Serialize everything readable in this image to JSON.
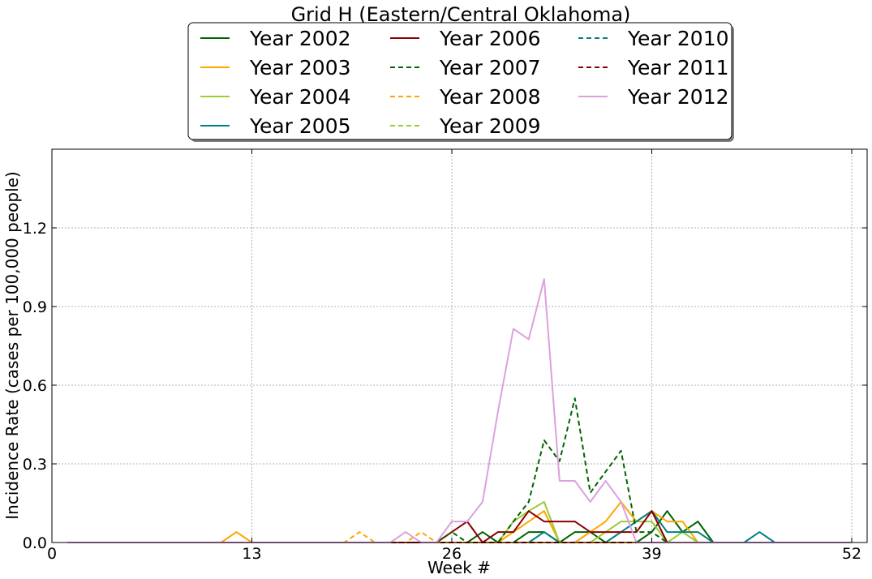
{
  "chart_data": {
    "type": "line",
    "title": "Grid H (Eastern/Central Oklahoma)",
    "xlabel": "Week #",
    "ylabel": "Incidence Rate (cases per 100,000 people)",
    "xlim": [
      0,
      53
    ],
    "ylim": [
      0,
      1.5
    ],
    "xticks": [
      0,
      13,
      26,
      39,
      52
    ],
    "yticks": [
      0.0,
      0.3,
      0.6,
      0.9,
      1.2
    ],
    "ytick_labels": [
      "0.0",
      "0.3",
      "0.6",
      "0.9",
      "1.2"
    ],
    "grid": true,
    "legend": {
      "placement": "top-center",
      "columns": 3
    },
    "series": [
      {
        "name": "Year 2002",
        "color": "#006400",
        "dash": "solid",
        "x": [
          1,
          2,
          3,
          4,
          5,
          6,
          7,
          8,
          9,
          10,
          11,
          12,
          13,
          14,
          15,
          16,
          17,
          18,
          19,
          20,
          21,
          22,
          23,
          24,
          25,
          26,
          27,
          28,
          29,
          30,
          31,
          32,
          33,
          34,
          35,
          36,
          37,
          38,
          39,
          40,
          41,
          42,
          43,
          44,
          45,
          46,
          47,
          48,
          49,
          50,
          51,
          52
        ],
        "y": [
          0,
          0,
          0,
          0,
          0,
          0,
          0,
          0,
          0,
          0,
          0,
          0,
          0,
          0,
          0,
          0,
          0,
          0,
          0,
          0,
          0,
          0,
          0,
          0,
          0,
          0,
          0,
          0.04,
          0,
          0,
          0.04,
          0.04,
          0,
          0.04,
          0.04,
          0,
          0,
          0,
          0.04,
          0.12,
          0.04,
          0.08,
          0,
          0,
          0,
          0,
          0,
          0,
          0,
          0,
          0,
          0
        ]
      },
      {
        "name": "Year 2003",
        "color": "#ffa500",
        "dash": "solid",
        "x": [
          1,
          2,
          3,
          4,
          5,
          6,
          7,
          8,
          9,
          10,
          11,
          12,
          13,
          14,
          15,
          16,
          17,
          18,
          19,
          20,
          21,
          22,
          23,
          24,
          25,
          26,
          27,
          28,
          29,
          30,
          31,
          32,
          33,
          34,
          35,
          36,
          37,
          38,
          39,
          40,
          41,
          42,
          43,
          44,
          45,
          46,
          47,
          48,
          49,
          50,
          51,
          52
        ],
        "y": [
          0,
          0,
          0,
          0,
          0,
          0,
          0,
          0,
          0,
          0,
          0,
          0.04,
          0,
          0,
          0,
          0,
          0,
          0,
          0,
          0,
          0,
          0,
          0,
          0,
          0,
          0,
          0,
          0,
          0,
          0.04,
          0.08,
          0.12,
          0,
          0,
          0.04,
          0.08,
          0.155,
          0.08,
          0.12,
          0.08,
          0.08,
          0,
          0,
          0,
          0,
          0,
          0,
          0,
          0,
          0,
          0,
          0
        ]
      },
      {
        "name": "Year 2004",
        "color": "#9acd32",
        "dash": "solid",
        "x": [
          1,
          2,
          3,
          4,
          5,
          6,
          7,
          8,
          9,
          10,
          11,
          12,
          13,
          14,
          15,
          16,
          17,
          18,
          19,
          20,
          21,
          22,
          23,
          24,
          25,
          26,
          27,
          28,
          29,
          30,
          31,
          32,
          33,
          34,
          35,
          36,
          37,
          38,
          39,
          40,
          41,
          42,
          43,
          44,
          45,
          46,
          47,
          48,
          49,
          50,
          51,
          52
        ],
        "y": [
          0,
          0,
          0,
          0,
          0,
          0,
          0,
          0,
          0,
          0,
          0,
          0,
          0,
          0,
          0,
          0,
          0,
          0,
          0,
          0,
          0,
          0,
          0,
          0,
          0,
          0,
          0,
          0,
          0,
          0.08,
          0.12,
          0.155,
          0,
          0,
          0,
          0.04,
          0.08,
          0.08,
          0.08,
          0,
          0.04,
          0,
          0,
          0,
          0,
          0,
          0,
          0,
          0,
          0,
          0,
          0
        ]
      },
      {
        "name": "Year 2005",
        "color": "#008080",
        "dash": "solid",
        "x": [
          1,
          2,
          3,
          4,
          5,
          6,
          7,
          8,
          9,
          10,
          11,
          12,
          13,
          14,
          15,
          16,
          17,
          18,
          19,
          20,
          21,
          22,
          23,
          24,
          25,
          26,
          27,
          28,
          29,
          30,
          31,
          32,
          33,
          34,
          35,
          36,
          37,
          38,
          39,
          40,
          41,
          42,
          43,
          44,
          45,
          46,
          47,
          48,
          49,
          50,
          51,
          52
        ],
        "y": [
          0,
          0,
          0,
          0,
          0,
          0,
          0,
          0,
          0,
          0,
          0,
          0,
          0,
          0,
          0,
          0,
          0,
          0,
          0,
          0,
          0,
          0,
          0,
          0,
          0,
          0,
          0,
          0,
          0,
          0,
          0,
          0.04,
          0,
          0,
          0,
          0,
          0.04,
          0.08,
          0.12,
          0.04,
          0.04,
          0.04,
          0,
          0,
          0,
          0.04,
          0,
          0,
          0,
          0,
          0,
          0
        ]
      },
      {
        "name": "Year 2006",
        "color": "#8b0000",
        "dash": "solid",
        "x": [
          1,
          2,
          3,
          4,
          5,
          6,
          7,
          8,
          9,
          10,
          11,
          12,
          13,
          14,
          15,
          16,
          17,
          18,
          19,
          20,
          21,
          22,
          23,
          24,
          25,
          26,
          27,
          28,
          29,
          30,
          31,
          32,
          33,
          34,
          35,
          36,
          37,
          38,
          39,
          40,
          41,
          42,
          43,
          44,
          45,
          46,
          47,
          48,
          49,
          50,
          51,
          52
        ],
        "y": [
          0,
          0,
          0,
          0,
          0,
          0,
          0,
          0,
          0,
          0,
          0,
          0,
          0,
          0,
          0,
          0,
          0,
          0,
          0,
          0,
          0,
          0,
          0,
          0,
          0,
          0.04,
          0.08,
          0,
          0.04,
          0.04,
          0.12,
          0.08,
          0.08,
          0.08,
          0.04,
          0.04,
          0.04,
          0.04,
          0.12,
          0,
          0,
          0,
          0,
          0,
          0,
          0,
          0,
          0,
          0,
          0,
          0,
          0
        ]
      },
      {
        "name": "Year 2007",
        "color": "#006400",
        "dash": "dashed",
        "x": [
          1,
          2,
          3,
          4,
          5,
          6,
          7,
          8,
          9,
          10,
          11,
          12,
          13,
          14,
          15,
          16,
          17,
          18,
          19,
          20,
          21,
          22,
          23,
          24,
          25,
          26,
          27,
          28,
          29,
          30,
          31,
          32,
          33,
          34,
          35,
          36,
          37,
          38,
          39,
          40,
          41,
          42,
          43,
          44,
          45,
          46,
          47,
          48,
          49,
          50,
          51,
          52
        ],
        "y": [
          0,
          0,
          0,
          0,
          0,
          0,
          0,
          0,
          0,
          0,
          0,
          0,
          0,
          0,
          0,
          0,
          0,
          0,
          0,
          0,
          0,
          0,
          0,
          0,
          0,
          0.04,
          0,
          0,
          0,
          0.08,
          0.155,
          0.39,
          0.31,
          0.55,
          0.19,
          0.27,
          0.35,
          0.04,
          0.04,
          0,
          0,
          0,
          0,
          0,
          0,
          0,
          0,
          0,
          0,
          0,
          0,
          0
        ]
      },
      {
        "name": "Year 2008",
        "color": "#ffa500",
        "dash": "dashed",
        "x": [
          1,
          2,
          3,
          4,
          5,
          6,
          7,
          8,
          9,
          10,
          11,
          12,
          13,
          14,
          15,
          16,
          17,
          18,
          19,
          20,
          21,
          22,
          23,
          24,
          25,
          26,
          27,
          28,
          29,
          30,
          31,
          32,
          33,
          34,
          35,
          36,
          37,
          38,
          39,
          40,
          41,
          42,
          43,
          44,
          45,
          46,
          47,
          48,
          49,
          50,
          51,
          52
        ],
        "y": [
          0,
          0,
          0,
          0,
          0,
          0,
          0,
          0,
          0,
          0,
          0,
          0,
          0,
          0,
          0,
          0,
          0,
          0,
          0,
          0.04,
          0,
          0,
          0,
          0.04,
          0,
          0,
          0,
          0,
          0,
          0,
          0,
          0,
          0,
          0,
          0,
          0,
          0,
          0,
          0,
          0,
          0,
          0,
          0,
          0,
          0,
          0,
          0,
          0,
          0,
          0,
          0,
          0
        ]
      },
      {
        "name": "Year 2009",
        "color": "#9acd32",
        "dash": "dashed",
        "x": [
          1,
          2,
          3,
          4,
          5,
          6,
          7,
          8,
          9,
          10,
          11,
          12,
          13,
          14,
          15,
          16,
          17,
          18,
          19,
          20,
          21,
          22,
          23,
          24,
          25,
          26,
          27,
          28,
          29,
          30,
          31,
          32,
          33,
          34,
          35,
          36,
          37,
          38,
          39,
          40,
          41,
          42,
          43,
          44,
          45,
          46,
          47,
          48,
          49,
          50,
          51,
          52
        ],
        "y": [
          0,
          0,
          0,
          0,
          0,
          0,
          0,
          0,
          0,
          0,
          0,
          0,
          0,
          0,
          0,
          0,
          0,
          0,
          0,
          0,
          0,
          0,
          0,
          0,
          0,
          0,
          0,
          0,
          0,
          0,
          0,
          0,
          0,
          0,
          0,
          0,
          0,
          0,
          0,
          0,
          0,
          0,
          0,
          0,
          0,
          0,
          0,
          0,
          0,
          0,
          0,
          0
        ]
      },
      {
        "name": "Year 2010",
        "color": "#008080",
        "dash": "dashed",
        "x": [
          1,
          2,
          3,
          4,
          5,
          6,
          7,
          8,
          9,
          10,
          11,
          12,
          13,
          14,
          15,
          16,
          17,
          18,
          19,
          20,
          21,
          22,
          23,
          24,
          25,
          26,
          27,
          28,
          29,
          30,
          31,
          32,
          33,
          34,
          35,
          36,
          37,
          38,
          39,
          40,
          41,
          42,
          43,
          44,
          45,
          46,
          47,
          48,
          49,
          50,
          51,
          52
        ],
        "y": [
          0,
          0,
          0,
          0,
          0,
          0,
          0,
          0,
          0,
          0,
          0,
          0,
          0,
          0,
          0,
          0,
          0,
          0,
          0,
          0,
          0,
          0,
          0,
          0,
          0,
          0,
          0,
          0,
          0,
          0,
          0,
          0,
          0,
          0,
          0,
          0,
          0,
          0,
          0,
          0,
          0,
          0,
          0,
          0,
          0,
          0,
          0,
          0,
          0,
          0,
          0,
          0
        ]
      },
      {
        "name": "Year 2011",
        "color": "#8b0000",
        "dash": "dashed",
        "x": [
          1,
          2,
          3,
          4,
          5,
          6,
          7,
          8,
          9,
          10,
          11,
          12,
          13,
          14,
          15,
          16,
          17,
          18,
          19,
          20,
          21,
          22,
          23,
          24,
          25,
          26,
          27,
          28,
          29,
          30,
          31,
          32,
          33,
          34,
          35,
          36,
          37,
          38,
          39,
          40,
          41,
          42,
          43,
          44,
          45,
          46,
          47,
          48,
          49,
          50,
          51,
          52
        ],
        "y": [
          0,
          0,
          0,
          0,
          0,
          0,
          0,
          0,
          0,
          0,
          0,
          0,
          0,
          0,
          0,
          0,
          0,
          0,
          0,
          0,
          0,
          0,
          0,
          0,
          0,
          0,
          0,
          0,
          0,
          0,
          0,
          0,
          0,
          0,
          0,
          0,
          0,
          0,
          0,
          0,
          0,
          0,
          0,
          0,
          0,
          0,
          0,
          0,
          0,
          0,
          0,
          0
        ]
      },
      {
        "name": "Year 2012",
        "color": "#dda0dd",
        "dash": "solid",
        "x": [
          1,
          2,
          3,
          4,
          5,
          6,
          7,
          8,
          9,
          10,
          11,
          12,
          13,
          14,
          15,
          16,
          17,
          18,
          19,
          20,
          21,
          22,
          23,
          24,
          25,
          26,
          27,
          28,
          29,
          30,
          31,
          32,
          33,
          34,
          35,
          36,
          37,
          38,
          39,
          40,
          41,
          42,
          43,
          44,
          45,
          46,
          47,
          48,
          49,
          50,
          51,
          52
        ],
        "y": [
          0,
          0,
          0,
          0,
          0,
          0,
          0,
          0,
          0,
          0,
          0,
          0,
          0,
          0,
          0,
          0,
          0,
          0,
          0,
          0,
          0,
          0,
          0.04,
          0,
          0,
          0.08,
          0.08,
          0.155,
          0.5,
          0.815,
          0.775,
          1.005,
          0.235,
          0.235,
          0.155,
          0.235,
          0.155,
          0,
          0,
          0,
          0,
          0,
          0,
          0,
          0,
          0,
          0,
          0,
          0,
          0,
          0,
          0
        ]
      }
    ]
  }
}
